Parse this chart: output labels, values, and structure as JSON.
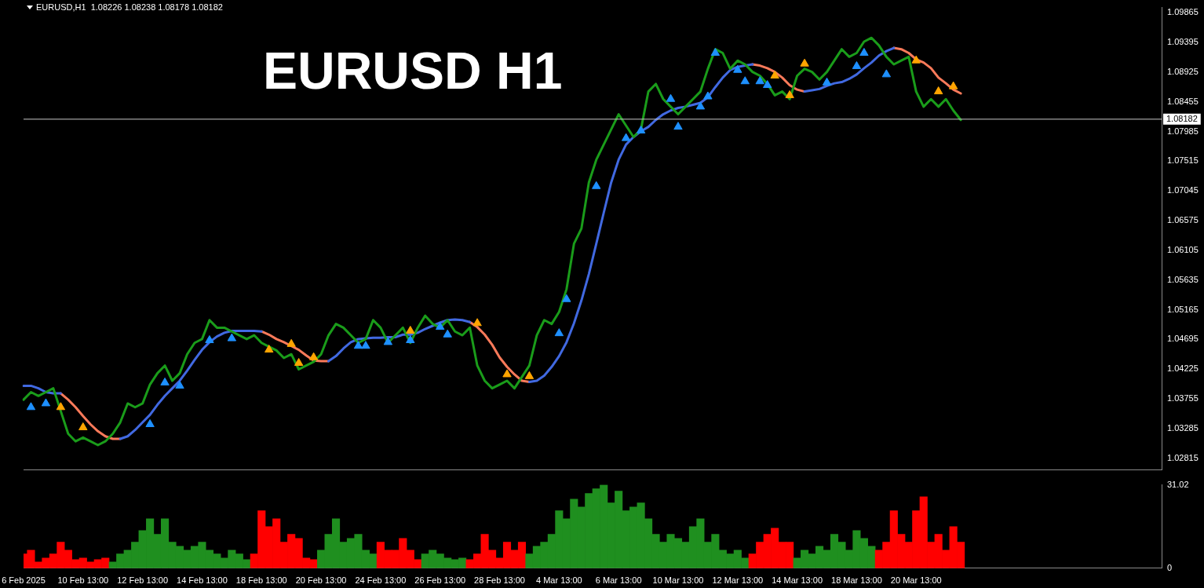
{
  "chart_data": [
    {
      "type": "line",
      "title": "EURUSD H1",
      "subtitle": "EURUSD,H1  1.08226 1.08238 1.08178 1.08182",
      "categories": [
        null,
        null,
        null,
        null,
        null,
        null,
        null,
        null,
        null,
        null,
        null,
        null,
        null,
        null,
        null,
        null,
        null,
        null,
        null,
        null,
        null,
        null,
        null,
        null,
        null,
        null,
        null,
        null,
        null,
        null,
        null,
        null,
        null,
        null,
        null,
        null,
        null,
        null,
        null,
        null,
        null,
        null,
        null,
        null,
        null,
        null,
        null,
        null,
        null,
        null,
        null,
        null,
        null,
        null,
        null,
        null,
        null,
        null,
        null,
        null,
        null,
        null,
        null,
        null,
        null,
        null,
        null,
        null,
        null,
        null,
        null,
        null,
        null,
        null,
        null,
        null,
        null,
        null,
        null,
        null,
        null,
        null,
        null,
        null,
        null,
        null,
        null,
        null,
        null,
        null,
        null,
        null,
        null,
        null,
        null,
        null,
        null,
        null,
        null,
        null,
        null,
        null,
        null,
        null,
        null,
        null,
        null,
        null,
        null,
        null,
        null,
        null,
        null,
        null,
        null,
        null,
        null,
        null,
        null,
        null,
        null,
        null,
        null,
        null,
        null,
        null,
        null,
        null,
        null,
        null,
        null,
        null,
        null,
        null,
        null,
        null,
        null,
        null,
        null,
        null,
        null,
        null,
        null,
        null,
        null,
        null,
        null,
        null,
        null,
        null,
        null,
        null,
        null,
        null
      ],
      "ylim": [
        1.0263,
        1.0995
      ],
      "yticks": [
        1.02815,
        1.03285,
        1.03755,
        1.04225,
        1.04695,
        1.05165,
        1.05635,
        1.06105,
        1.06575,
        1.07045,
        1.07515,
        1.07985,
        1.08455,
        1.08925,
        1.09395,
        1.09865
      ],
      "tick_labels": "y",
      "grid": false,
      "legend": false,
      "marker": "none",
      "line_style": "solid",
      "ref_lines": [
        {
          "axis": "y",
          "value": 1.08182,
          "label": "1.08182",
          "color": "#c8c8c8"
        }
      ],
      "series": [
        {
          "type": "line",
          "color": "#1a9c1a",
          "values": [
            1.0374,
            1.0386,
            1.038,
            1.0386,
            1.0392,
            1.0356,
            1.032,
            1.0308,
            1.0314,
            1.0308,
            1.0302,
            1.0308,
            1.032,
            1.0338,
            1.0368,
            1.0362,
            1.0368,
            1.0398,
            1.0416,
            1.0428,
            1.0404,
            1.0416,
            1.0446,
            1.0464,
            1.047,
            1.05,
            1.0488,
            1.0488,
            1.0482,
            1.0476,
            1.047,
            1.0476,
            1.0464,
            1.0458,
            1.0452,
            1.044,
            1.0446,
            1.0422,
            1.0428,
            1.0434,
            1.0446,
            1.0476,
            1.0494,
            1.0488,
            1.0476,
            1.0464,
            1.047,
            1.05,
            1.0488,
            1.0464,
            1.0476,
            1.0488,
            1.0464,
            1.0488,
            1.0507,
            1.0494,
            1.0488,
            1.05,
            1.0482,
            1.0476,
            1.0488,
            1.0428,
            1.0404,
            1.0392,
            1.0398,
            1.0404,
            1.0392,
            1.041,
            1.0428,
            1.0476,
            1.05,
            1.0494,
            1.0513,
            1.0549,
            1.0621,
            1.0645,
            1.0718,
            1.0754,
            1.0778,
            1.0802,
            1.0826,
            1.0808,
            1.079,
            1.0802,
            1.0862,
            1.0874,
            1.085,
            1.0838,
            1.0826,
            1.0838,
            1.085,
            1.0862,
            1.0898,
            1.0929,
            1.0923,
            1.0898,
            1.0911,
            1.0905,
            1.0893,
            1.0887,
            1.0874,
            1.0856,
            1.0862,
            1.085,
            1.0887,
            1.0898,
            1.0893,
            1.0881,
            1.0893,
            1.0911,
            1.0929,
            1.0917,
            1.0923,
            1.0941,
            1.0947,
            1.0935,
            1.0917,
            1.0905,
            1.0911,
            1.0917,
            1.0862,
            1.0838,
            1.085,
            1.0838,
            1.085,
            1.0832,
            1.0817,
            null,
            null,
            null,
            null,
            null,
            null,
            null,
            null,
            null,
            null,
            null,
            null,
            null,
            null,
            null,
            null,
            null,
            null,
            null,
            null,
            null,
            null,
            null,
            null,
            null,
            null,
            null
          ]
        },
        {
          "type": "line",
          "color": "#4169e1",
          "values": [
            1.0396,
            1.0396,
            1.0392,
            1.0386,
            1.0384,
            1.0384,
            null,
            null,
            null,
            null,
            null,
            null,
            null,
            1.0312,
            1.0316,
            1.0326,
            1.0338,
            1.035,
            1.0366,
            1.038,
            1.0392,
            1.0404,
            1.042,
            1.0437,
            1.0453,
            1.0465,
            1.0474,
            1.048,
            1.0483,
            1.0483,
            1.0483,
            1.0483,
            1.0482,
            null,
            null,
            null,
            null,
            null,
            null,
            null,
            null,
            1.0435,
            1.0443,
            1.0455,
            1.0465,
            1.047,
            1.0471,
            1.0472,
            1.0472,
            1.0473,
            1.0473,
            1.0477,
            1.0477,
            1.048,
            1.0486,
            1.0491,
            1.0496,
            1.05,
            1.0501,
            1.05,
            1.0497,
            null,
            null,
            null,
            null,
            null,
            null,
            null,
            1.0402,
            1.0404,
            1.0412,
            1.0426,
            1.0443,
            1.0465,
            1.0495,
            1.0531,
            1.0573,
            1.0621,
            1.067,
            1.0718,
            1.0754,
            1.0778,
            1.079,
            1.0799,
            1.0806,
            1.0817,
            1.0826,
            1.0832,
            1.0836,
            1.0838,
            1.0841,
            1.0844,
            1.0853,
            1.0869,
            1.0884,
            1.0896,
            1.0901,
            1.0903,
            1.0905,
            null,
            null,
            null,
            null,
            null,
            null,
            1.0862,
            1.0864,
            1.0866,
            1.0871,
            1.0875,
            1.0877,
            1.0882,
            1.0889,
            1.0899,
            1.0908,
            1.0919,
            1.0926,
            1.0931,
            null,
            null,
            null,
            null,
            null,
            null,
            null,
            null,
            null,
            null,
            null,
            null,
            null,
            null,
            null,
            null,
            null,
            null,
            null,
            null,
            null,
            null,
            null,
            null,
            null,
            null,
            null,
            null,
            null,
            null,
            null,
            null,
            null,
            null,
            null,
            null
          ]
        },
        {
          "type": "line",
          "color": "#fa7a5a",
          "values": [
            null,
            null,
            null,
            null,
            null,
            1.0384,
            1.0374,
            1.0362,
            1.0348,
            1.0335,
            1.0324,
            1.0316,
            1.0312,
            1.0312,
            null,
            null,
            null,
            null,
            null,
            null,
            null,
            null,
            null,
            null,
            null,
            null,
            null,
            null,
            null,
            null,
            null,
            null,
            1.0482,
            1.0477,
            1.047,
            1.0465,
            1.0459,
            1.0453,
            1.0444,
            1.0436,
            1.0435,
            1.0435,
            null,
            null,
            null,
            null,
            null,
            null,
            null,
            null,
            null,
            null,
            null,
            null,
            null,
            null,
            null,
            null,
            null,
            null,
            1.0497,
            1.0489,
            1.0477,
            1.0461,
            1.0441,
            1.0426,
            1.0414,
            1.0404,
            1.0402,
            null,
            null,
            null,
            null,
            null,
            null,
            null,
            null,
            null,
            null,
            null,
            null,
            null,
            null,
            null,
            null,
            null,
            null,
            null,
            null,
            null,
            null,
            null,
            null,
            null,
            null,
            null,
            null,
            null,
            1.0905,
            1.0903,
            1.0899,
            1.0893,
            1.0884,
            1.0872,
            1.0865,
            1.0862,
            null,
            null,
            null,
            null,
            null,
            null,
            null,
            null,
            null,
            null,
            null,
            1.0931,
            1.0929,
            1.0923,
            1.0913,
            1.0908,
            1.0899,
            1.0884,
            1.0875,
            1.0865,
            1.0859,
            null,
            null,
            null,
            null,
            null,
            null,
            null,
            null,
            null,
            null,
            null,
            null,
            null,
            null,
            null,
            null,
            null,
            null,
            null,
            null,
            null,
            null,
            null,
            null,
            null,
            null,
            null
          ]
        },
        {
          "type": "scatter",
          "marker": "triangle",
          "color": "#1e90ff",
          "values": [
            null,
            1.0362,
            null,
            1.0368,
            null,
            null,
            null,
            null,
            null,
            null,
            null,
            null,
            null,
            null,
            null,
            null,
            null,
            1.0335,
            null,
            1.0401,
            null,
            1.0396,
            null,
            null,
            null,
            1.0468,
            null,
            null,
            1.0471,
            null,
            null,
            null,
            null,
            null,
            null,
            null,
            null,
            null,
            null,
            null,
            null,
            null,
            null,
            null,
            null,
            1.0459,
            1.0459,
            null,
            null,
            1.0465,
            null,
            null,
            1.0468,
            null,
            null,
            null,
            1.0489,
            1.0477,
            null,
            null,
            null,
            null,
            null,
            null,
            null,
            null,
            null,
            null,
            null,
            null,
            null,
            null,
            1.0479,
            1.0533,
            null,
            null,
            null,
            1.0712,
            null,
            null,
            null,
            1.0788,
            null,
            1.08,
            null,
            null,
            null,
            1.085,
            1.0806,
            null,
            null,
            1.0838,
            1.0854,
            1.0923,
            null,
            null,
            1.0896,
            1.0878,
            null,
            1.0878,
            1.0872,
            null,
            null,
            null,
            null,
            null,
            null,
            null,
            1.0876,
            null,
            null,
            null,
            1.0902,
            1.0923,
            null,
            null,
            1.0889,
            null,
            null,
            null,
            null,
            null,
            null,
            null,
            null,
            null,
            null,
            null,
            null,
            null,
            null,
            null,
            null,
            null,
            null,
            null,
            null,
            null,
            null,
            null,
            null,
            null,
            null,
            null,
            null,
            null,
            null,
            null,
            null,
            null,
            null,
            null,
            null,
            null
          ]
        },
        {
          "type": "scatter",
          "marker": "triangle",
          "color": "#ffa500",
          "values": [
            null,
            null,
            null,
            null,
            null,
            1.0362,
            null,
            null,
            1.033,
            null,
            null,
            null,
            null,
            null,
            null,
            null,
            null,
            null,
            null,
            null,
            null,
            null,
            null,
            null,
            null,
            null,
            null,
            null,
            null,
            null,
            null,
            null,
            null,
            1.0453,
            null,
            null,
            1.0462,
            1.0432,
            null,
            1.0441,
            null,
            null,
            null,
            null,
            null,
            null,
            null,
            null,
            null,
            null,
            null,
            null,
            1.0483,
            null,
            null,
            null,
            null,
            null,
            null,
            null,
            null,
            1.0495,
            null,
            null,
            null,
            1.0414,
            null,
            null,
            1.0411,
            null,
            null,
            null,
            null,
            null,
            null,
            null,
            null,
            null,
            null,
            null,
            null,
            null,
            null,
            null,
            null,
            null,
            null,
            null,
            null,
            null,
            null,
            null,
            null,
            null,
            null,
            null,
            null,
            null,
            null,
            null,
            null,
            1.0887,
            null,
            1.0856,
            null,
            1.0906,
            null,
            null,
            null,
            null,
            null,
            null,
            null,
            null,
            null,
            null,
            null,
            null,
            null,
            null,
            1.0911,
            null,
            null,
            1.0862,
            null,
            1.087,
            null,
            null,
            null,
            null,
            null,
            null,
            null,
            null,
            null,
            null,
            null,
            null,
            null,
            null,
            null,
            null,
            null,
            null,
            null,
            null,
            null,
            null,
            null,
            null,
            null,
            null,
            null,
            null
          ]
        }
      ]
    },
    {
      "type": "bar",
      "categories": [
        "6 Feb 2025",
        null,
        null,
        null,
        null,
        null,
        null,
        null,
        "10 Feb 13:00",
        null,
        null,
        null,
        null,
        null,
        null,
        null,
        "12 Feb 13:00",
        null,
        null,
        null,
        null,
        null,
        null,
        null,
        "14 Feb 13:00",
        null,
        null,
        null,
        null,
        null,
        null,
        null,
        "18 Feb 13:00",
        null,
        null,
        null,
        null,
        null,
        null,
        null,
        "20 Feb 13:00",
        null,
        null,
        null,
        null,
        null,
        null,
        null,
        "24 Feb 13:00",
        null,
        null,
        null,
        null,
        null,
        null,
        null,
        "26 Feb 13:00",
        null,
        null,
        null,
        null,
        null,
        null,
        null,
        "28 Feb 13:00",
        null,
        null,
        null,
        null,
        null,
        null,
        null,
        "4 Mar 13:00",
        null,
        null,
        null,
        null,
        null,
        null,
        null,
        "6 Mar 13:00",
        null,
        null,
        null,
        null,
        null,
        null,
        null,
        "10 Mar 13:00",
        null,
        null,
        null,
        null,
        null,
        null,
        null,
        "12 Mar 13:00",
        null,
        null,
        null,
        null,
        null,
        null,
        null,
        "14 Mar 13:00",
        null,
        null,
        null,
        null,
        null,
        null,
        null,
        "18 Mar 13:00",
        null,
        null,
        null,
        null,
        null,
        null,
        null,
        "20 Mar 13:00",
        null,
        null,
        null,
        null,
        null,
        null,
        null,
        null,
        null,
        null,
        null,
        null,
        null,
        null,
        null,
        null,
        null,
        null,
        null,
        null,
        null,
        null,
        null,
        null,
        null,
        null,
        null,
        null,
        null,
        null,
        null,
        null,
        null
      ],
      "ylim": [
        0,
        31.02
      ],
      "yticks": [
        0,
        31.02
      ],
      "grid": false,
      "legend": false,
      "values": [
        5.3,
        6.7,
        2.3,
        3.8,
        5.3,
        9.7,
        6.7,
        3.2,
        3.8,
        2.3,
        3.2,
        3.8,
        2.3,
        5.3,
        6.7,
        9.7,
        14.0,
        18.4,
        12.6,
        18.4,
        9.7,
        8.2,
        6.7,
        8.2,
        9.7,
        6.7,
        5.3,
        3.8,
        6.7,
        5.3,
        3.2,
        5.3,
        21.4,
        15.5,
        18.4,
        9.7,
        12.6,
        11.1,
        3.8,
        3.2,
        6.7,
        12.6,
        18.4,
        9.7,
        11.1,
        12.6,
        6.7,
        5.3,
        9.7,
        6.7,
        6.7,
        11.1,
        6.7,
        3.2,
        5.3,
        6.7,
        5.3,
        3.8,
        3.2,
        3.8,
        3.2,
        5.3,
        12.6,
        6.7,
        3.8,
        9.7,
        6.7,
        9.7,
        5.3,
        8.2,
        9.7,
        12.6,
        21.4,
        18.4,
        25.7,
        22.8,
        27.8,
        29.6,
        31.0,
        24.3,
        28.7,
        21.4,
        22.8,
        24.3,
        18.4,
        12.6,
        9.7,
        12.6,
        11.1,
        9.7,
        15.5,
        18.4,
        9.7,
        12.6,
        6.7,
        5.3,
        6.7,
        3.8,
        5.3,
        9.7,
        12.6,
        14.9,
        9.7,
        9.7,
        3.8,
        6.7,
        5.3,
        8.2,
        6.7,
        12.6,
        9.7,
        6.7,
        14.0,
        11.1,
        8.2,
        6.7,
        9.7,
        21.4,
        12.6,
        9.7,
        21.4,
        26.6,
        9.7,
        12.6,
        6.7,
        15.5,
        9.7,
        null,
        null,
        null,
        null,
        null,
        null,
        null,
        null,
        null,
        null,
        null,
        null,
        null,
        null,
        null,
        null,
        null,
        null,
        null,
        null,
        null,
        null,
        null,
        null,
        null,
        null,
        null
      ],
      "colors": [
        "#ff0000",
        "#ff0000",
        "#ff0000",
        "#ff0000",
        "#ff0000",
        "#ff0000",
        "#ff0000",
        "#ff0000",
        "#ff0000",
        "#ff0000",
        "#ff0000",
        "#ff0000",
        "#1f8f1f",
        "#1f8f1f",
        "#1f8f1f",
        "#1f8f1f",
        "#1f8f1f",
        "#1f8f1f",
        "#1f8f1f",
        "#1f8f1f",
        "#1f8f1f",
        "#1f8f1f",
        "#1f8f1f",
        "#1f8f1f",
        "#1f8f1f",
        "#1f8f1f",
        "#1f8f1f",
        "#1f8f1f",
        "#1f8f1f",
        "#1f8f1f",
        "#1f8f1f",
        "#ff0000",
        "#ff0000",
        "#ff0000",
        "#ff0000",
        "#ff0000",
        "#ff0000",
        "#ff0000",
        "#ff0000",
        "#ff0000",
        "#1f8f1f",
        "#1f8f1f",
        "#1f8f1f",
        "#1f8f1f",
        "#1f8f1f",
        "#1f8f1f",
        "#1f8f1f",
        "#1f8f1f",
        "#ff0000",
        "#ff0000",
        "#ff0000",
        "#ff0000",
        "#ff0000",
        "#ff0000",
        "#1f8f1f",
        "#1f8f1f",
        "#1f8f1f",
        "#1f8f1f",
        "#1f8f1f",
        "#1f8f1f",
        "#ff0000",
        "#ff0000",
        "#ff0000",
        "#ff0000",
        "#ff0000",
        "#ff0000",
        "#ff0000",
        "#ff0000",
        "#1f8f1f",
        "#1f8f1f",
        "#1f8f1f",
        "#1f8f1f",
        "#1f8f1f",
        "#1f8f1f",
        "#1f8f1f",
        "#1f8f1f",
        "#1f8f1f",
        "#1f8f1f",
        "#1f8f1f",
        "#1f8f1f",
        "#1f8f1f",
        "#1f8f1f",
        "#1f8f1f",
        "#1f8f1f",
        "#1f8f1f",
        "#1f8f1f",
        "#1f8f1f",
        "#1f8f1f",
        "#1f8f1f",
        "#1f8f1f",
        "#1f8f1f",
        "#1f8f1f",
        "#1f8f1f",
        "#1f8f1f",
        "#1f8f1f",
        "#1f8f1f",
        "#1f8f1f",
        "#1f8f1f",
        "#ff0000",
        "#ff0000",
        "#ff0000",
        "#ff0000",
        "#ff0000",
        "#ff0000",
        "#1f8f1f",
        "#1f8f1f",
        "#1f8f1f",
        "#1f8f1f",
        "#1f8f1f",
        "#1f8f1f",
        "#1f8f1f",
        "#1f8f1f",
        "#1f8f1f",
        "#1f8f1f",
        "#1f8f1f",
        "#ff0000",
        "#ff0000",
        "#ff0000",
        "#ff0000",
        "#ff0000",
        "#ff0000",
        "#ff0000",
        "#ff0000",
        "#ff0000",
        "#ff0000",
        "#ff0000",
        "#ff0000",
        "#ff0000",
        "#ff0000",
        "#ff0000",
        "#ff0000",
        "#ff0000",
        "#ff0000",
        "#ff0000",
        "#ff0000",
        "#ff0000",
        "#ff0000",
        "#ff0000",
        "#ff0000",
        "#ff0000",
        "#ff0000",
        "#ff0000",
        "#ff0000",
        "#ff0000",
        "#ff0000",
        "#ff0000",
        "#ff0000",
        "#ff0000",
        "#ff0000",
        "#ff0000",
        "#ff0000",
        "#ff0000",
        "#ff0000",
        "#ff0000"
      ]
    }
  ]
}
